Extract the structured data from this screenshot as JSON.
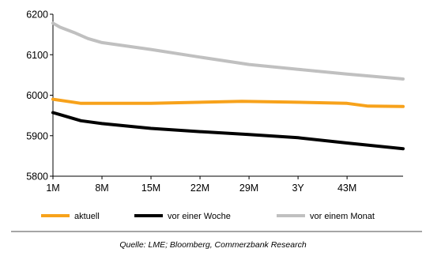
{
  "chart_data": {
    "type": "line",
    "title": "",
    "xlabel": "",
    "ylabel": "",
    "ylim": [
      5800,
      6200
    ],
    "yticks": [
      "5800",
      "5900",
      "6000",
      "6100",
      "6200"
    ],
    "x_ticks": [
      "1M",
      "8M",
      "15M",
      "22M",
      "29M",
      "3Y",
      "43M"
    ],
    "x_range_months": [
      1,
      51
    ],
    "grid": false,
    "legend": "bottom",
    "series": [
      {
        "name": "aktuell",
        "color": "#f7a21b",
        "x": [
          1,
          3,
          5,
          15,
          28,
          35,
          43,
          46,
          51
        ],
        "y": [
          5990,
          5985,
          5980,
          5980,
          5985,
          5983,
          5980,
          5973,
          5972
        ]
      },
      {
        "name": "vor einer Woche",
        "color": "#000000",
        "x": [
          1,
          2,
          5,
          8,
          15,
          22,
          29,
          36,
          43,
          51
        ],
        "y": [
          5957,
          5952,
          5937,
          5930,
          5918,
          5910,
          5903,
          5895,
          5882,
          5868
        ]
      },
      {
        "name": "vor einem Monat",
        "color": "#c0c0c0",
        "x": [
          1,
          2,
          4,
          6,
          8,
          15,
          22,
          29,
          36,
          43,
          51
        ],
        "y": [
          6178,
          6168,
          6155,
          6140,
          6130,
          6113,
          6094,
          6076,
          6064,
          6052,
          6040
        ]
      }
    ]
  },
  "source": "Quelle: LME; Bloomberg, Commerzbank Research"
}
